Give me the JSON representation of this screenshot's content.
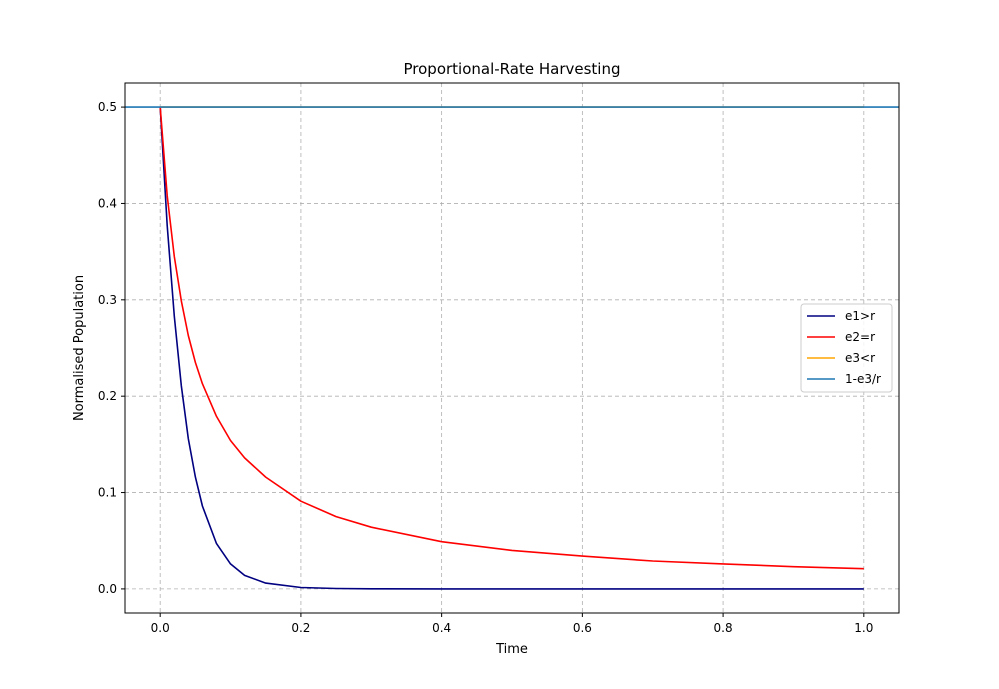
{
  "chart_data": {
    "type": "line",
    "title": "Proportional-Rate Harvesting",
    "xlabel": "Time",
    "ylabel": "Normalised Population",
    "xlim": [
      -0.05,
      1.05
    ],
    "ylim": [
      -0.025,
      0.525
    ],
    "xticks": [
      0.0,
      0.2,
      0.4,
      0.6,
      0.8,
      1.0
    ],
    "xtick_labels": [
      "0.0",
      "0.2",
      "0.4",
      "0.6",
      "0.8",
      "1.0"
    ],
    "yticks": [
      0.0,
      0.1,
      0.2,
      0.3,
      0.4,
      0.5
    ],
    "ytick_labels": [
      "0.0",
      "0.1",
      "0.2",
      "0.3",
      "0.4",
      "0.5"
    ],
    "grid": true,
    "legend_position": "center-right",
    "series": [
      {
        "name": "e1>r",
        "color": "#000080",
        "x": [
          0.0,
          0.01,
          0.02,
          0.03,
          0.04,
          0.05,
          0.06,
          0.08,
          0.1,
          0.12,
          0.15,
          0.2,
          0.25,
          0.3,
          0.4,
          0.5,
          0.6,
          0.7,
          0.8,
          0.9,
          1.0
        ],
        "y": [
          0.5,
          0.377,
          0.283,
          0.211,
          0.156,
          0.116,
          0.086,
          0.047,
          0.026,
          0.014,
          0.006,
          0.0015,
          0.0004,
          0.0001,
          0.0,
          0.0,
          0.0,
          0.0,
          0.0,
          0.0,
          0.0
        ]
      },
      {
        "name": "e2=r",
        "color": "#ff0000",
        "x": [
          0.0,
          0.01,
          0.02,
          0.03,
          0.04,
          0.05,
          0.06,
          0.08,
          0.1,
          0.12,
          0.15,
          0.2,
          0.25,
          0.3,
          0.4,
          0.5,
          0.6,
          0.7,
          0.8,
          0.9,
          1.0
        ],
        "y": [
          0.5,
          0.408,
          0.345,
          0.299,
          0.263,
          0.235,
          0.213,
          0.179,
          0.154,
          0.136,
          0.116,
          0.091,
          0.075,
          0.064,
          0.049,
          0.04,
          0.034,
          0.029,
          0.026,
          0.023,
          0.021
        ]
      },
      {
        "name": "e3<r",
        "color": "#ffa500",
        "x": [
          0.0,
          1.0
        ],
        "y": [
          0.5,
          0.5
        ]
      },
      {
        "name": "1-e3/r",
        "color": "#1f77b4",
        "type": "hline",
        "y": 0.5
      }
    ]
  }
}
